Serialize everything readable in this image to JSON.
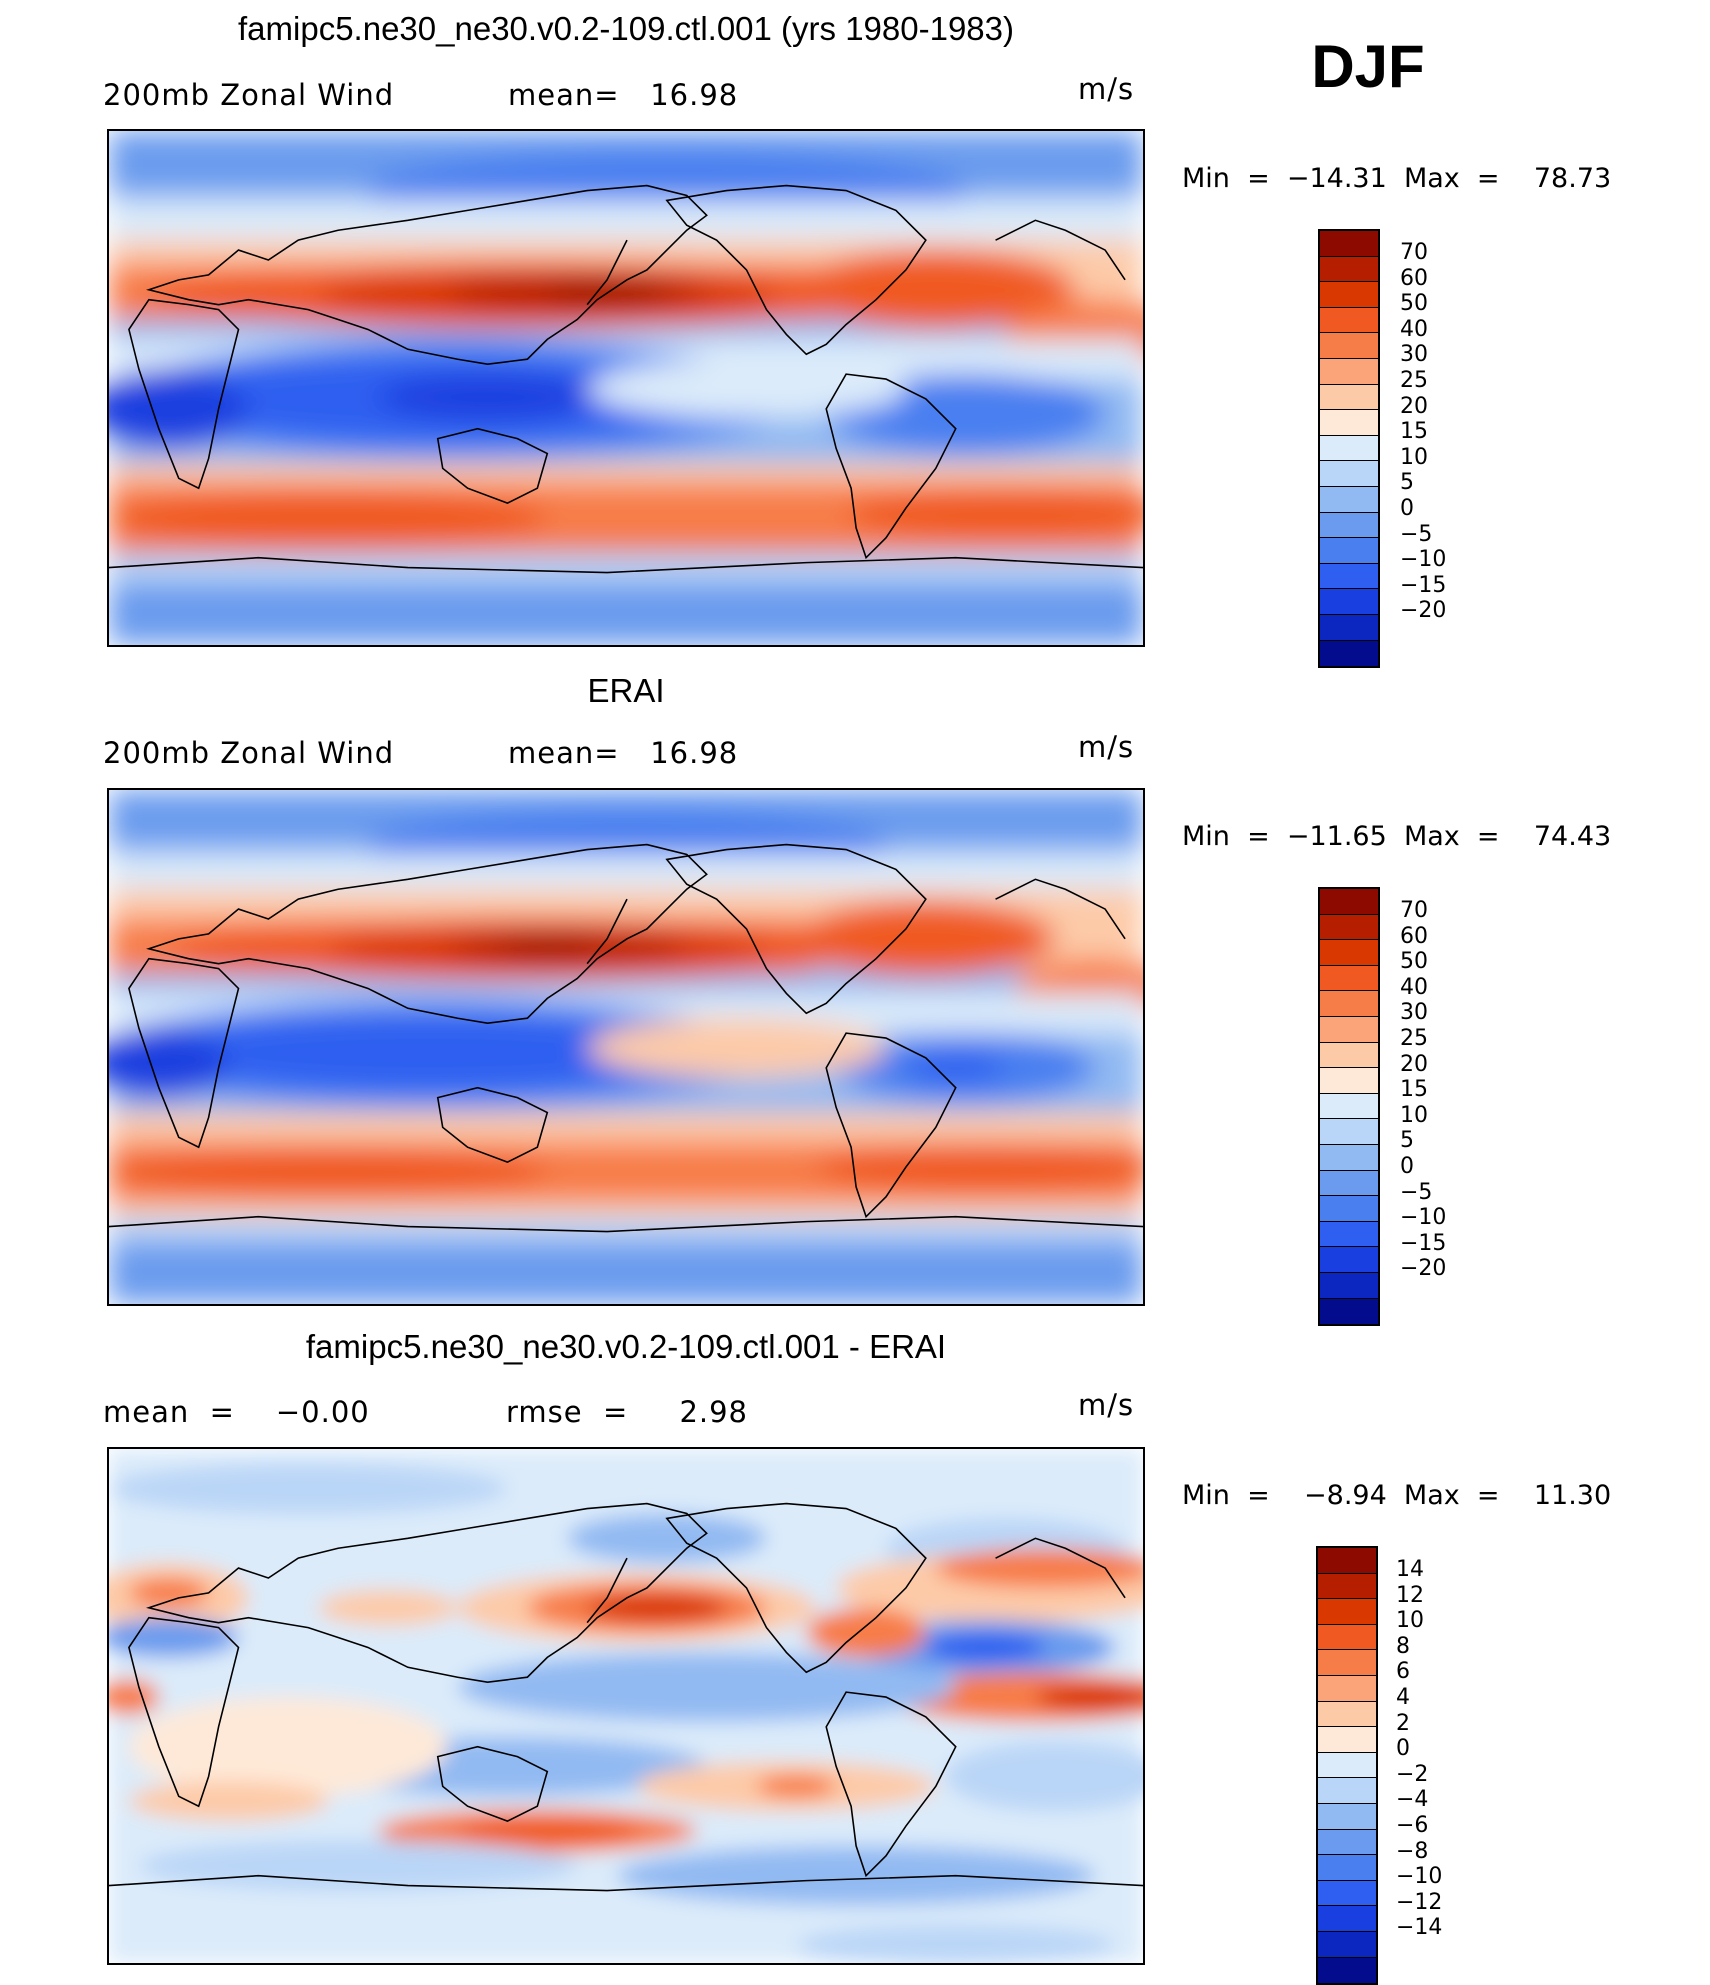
{
  "season": "DJF",
  "units": "m/s",
  "colors": {
    "zonal": [
      "#8c0a00",
      "#b51f00",
      "#d93800",
      "#f05a22",
      "#f77d48",
      "#fba47a",
      "#fdcaa8",
      "#fee9d8",
      "#dbebfa",
      "#b9d5f7",
      "#92baf2",
      "#6a9bee",
      "#4a7ff0",
      "#2e5ff0",
      "#1a3fe0",
      "#0c26c0",
      "#030c8c"
    ],
    "diff": [
      "#8c0a00",
      "#b51f00",
      "#d93800",
      "#f05a22",
      "#f77d48",
      "#fba47a",
      "#fdcaa8",
      "#fee9d8",
      "#dbebfa",
      "#b9d5f7",
      "#92baf2",
      "#6a9bee",
      "#4a7ff0",
      "#2e5ff0",
      "#1a3fe0",
      "#0c26c0",
      "#030c8c"
    ]
  },
  "panels": [
    {
      "id": "model",
      "title": "famipc5.ne30_ne30.v0.2-109.ctl.001 (yrs 1980-1983)",
      "left_label": "200mb Zonal Wind",
      "mid_label": "mean=   16.98",
      "units": "m/s",
      "minmax": "Min  =  −14.31  Max  =    78.73",
      "levels": [
        "70",
        "60",
        "50",
        "40",
        "30",
        "25",
        "20",
        "15",
        "10",
        "5",
        "0",
        "−5",
        "−10",
        "−15",
        "−20"
      ]
    },
    {
      "id": "obs",
      "title": "ERAI",
      "left_label": "200mb Zonal Wind",
      "mid_label": "mean=   16.98",
      "units": "m/s",
      "minmax": "Min  =  −11.65  Max  =    74.43",
      "levels": [
        "70",
        "60",
        "50",
        "40",
        "30",
        "25",
        "20",
        "15",
        "10",
        "5",
        "0",
        "−5",
        "−10",
        "−15",
        "−20"
      ]
    },
    {
      "id": "diff",
      "title": "famipc5.ne30_ne30.v0.2-109.ctl.001 - ERAI",
      "left_label": "mean  =    −0.00",
      "mid_label": "rmse  =     2.98",
      "units": "m/s",
      "minmax": "Min  =    −8.94  Max  =    11.30",
      "levels": [
        "14",
        "12",
        "10",
        "8",
        "6",
        "4",
        "2",
        "0",
        "−2",
        "−4",
        "−6",
        "−8",
        "−10",
        "−12",
        "−14"
      ]
    }
  ]
}
